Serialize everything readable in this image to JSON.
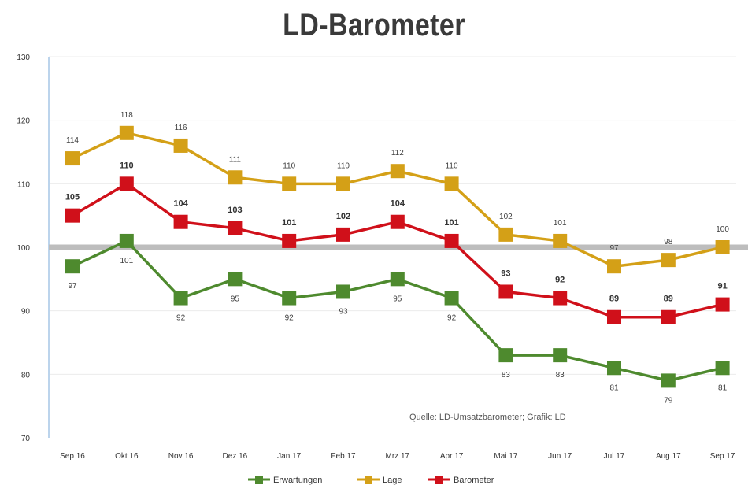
{
  "chart_data": {
    "type": "line",
    "title": "LD-Barometer",
    "categories": [
      "Sep 16",
      "Okt 16",
      "Nov 16",
      "Dez 16",
      "Jan 17",
      "Feb 17",
      "Mrz 17",
      "Apr 17",
      "Mai 17",
      "Jun 17",
      "Jul 17",
      "Aug 17",
      "Sep 17"
    ],
    "ylim": [
      70,
      130
    ],
    "yticks": [
      70,
      80,
      90,
      100,
      110,
      120,
      130
    ],
    "reference_line": 100,
    "grid": true,
    "legend_position": "bottom",
    "series": [
      {
        "name": "Erwartungen",
        "color": "#4e8a2e",
        "values": [
          97,
          101,
          92,
          95,
          92,
          93,
          95,
          92,
          83,
          83,
          81,
          79,
          81
        ]
      },
      {
        "name": "Lage",
        "color": "#d4a017",
        "values": [
          114,
          118,
          116,
          111,
          110,
          110,
          112,
          110,
          102,
          101,
          97,
          98,
          100
        ]
      },
      {
        "name": "Barometer",
        "color": "#d0101a",
        "values": [
          105,
          110,
          104,
          103,
          101,
          102,
          104,
          101,
          93,
          92,
          89,
          89,
          91
        ]
      }
    ],
    "annotation": "Quelle: LD-Umsatzbarometer; Grafik: LD"
  }
}
